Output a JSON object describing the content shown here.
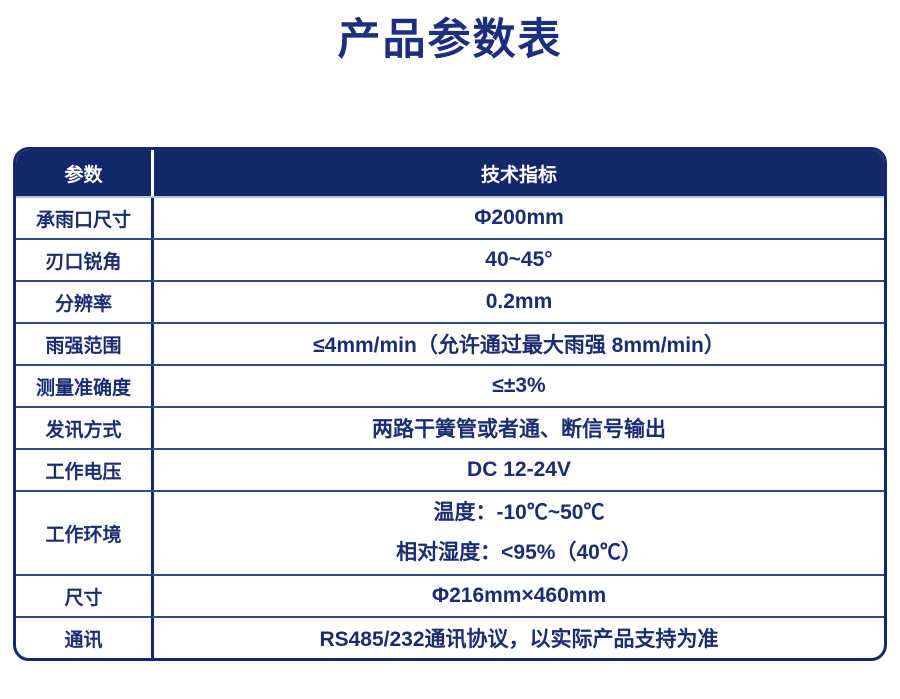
{
  "page": {
    "title": "产品参数表"
  },
  "colors": {
    "header_bg": "#12286b",
    "table_border": "#14286b",
    "text": "#1b2d71",
    "row_divider": "#2a4c82",
    "header_bottom_divider": "#aac9e4",
    "header_text": "#ffffff"
  },
  "specs": {
    "header": {
      "param": "参数",
      "value": "技术指标"
    },
    "rows": [
      {
        "param": "承雨口尺寸",
        "value": "Φ200mm"
      },
      {
        "param": "刃口锐角",
        "value": "40~45°"
      },
      {
        "param": "分辨率",
        "value": "0.2mm"
      },
      {
        "param": "雨强范围",
        "value": "≤4mm/min（允许通过最大雨强 8mm/min）"
      },
      {
        "param": "测量准确度",
        "value": "≤±3%"
      },
      {
        "param": "发讯方式",
        "value": "两路干簧管或者通、断信号输出"
      },
      {
        "param": "工作电压",
        "value": "DC 12-24V"
      },
      {
        "param": "工作环境",
        "value_lines": [
          "温度：-10℃~50℃",
          "相对湿度：<95%（40℃）"
        ]
      },
      {
        "param": "尺寸",
        "value": "Φ216mm×460mm"
      },
      {
        "param": "通讯",
        "value": "RS485/232通讯协议，以实际产品支持为准"
      }
    ]
  }
}
